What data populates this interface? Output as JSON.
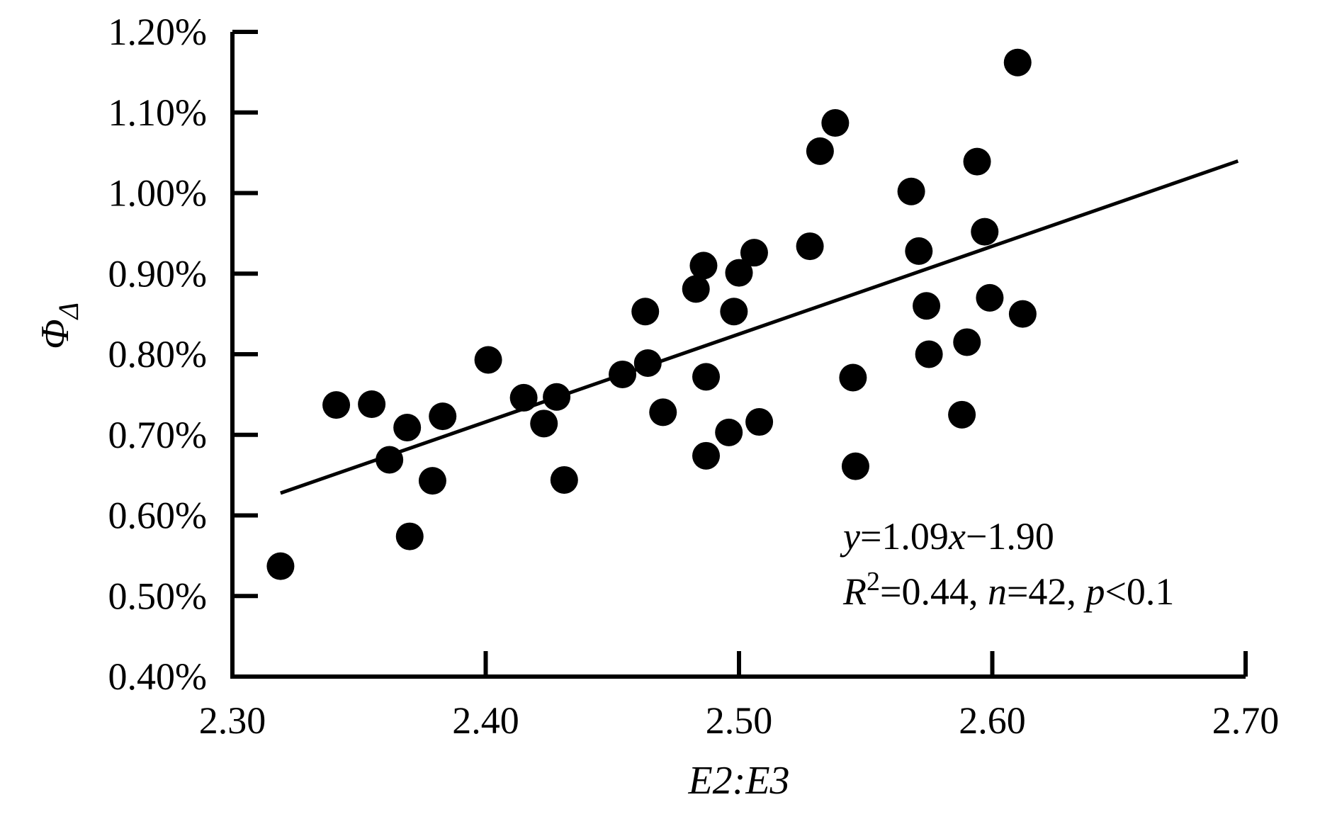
{
  "figure": {
    "background": "#ffffff",
    "ink_color": "#000000"
  },
  "chart_data": {
    "type": "scatter",
    "title": "",
    "xlabel": "E2:E3",
    "ylabel": "Φ_Δ",
    "xlim": [
      2.3,
      2.7
    ],
    "ylim": [
      0.4,
      1.2
    ],
    "y_unit": "percent",
    "grid": false,
    "legend": null,
    "x_ticks": {
      "values": [
        2.3,
        2.4,
        2.5,
        2.6,
        2.7
      ],
      "labels": [
        "2.30",
        "2.40",
        "2.50",
        "2.60",
        "2.70"
      ]
    },
    "y_ticks": {
      "values": [
        0.4,
        0.5,
        0.6,
        0.7,
        0.8,
        0.9,
        1.0,
        1.1,
        1.2
      ],
      "labels": [
        "0.40%",
        "0.50%",
        "0.60%",
        "0.70%",
        "0.80%",
        "0.90%",
        "1.00%",
        "1.10%",
        "1.20%"
      ]
    },
    "points": [
      [
        2.319,
        0.537
      ],
      [
        2.341,
        0.737
      ],
      [
        2.355,
        0.738
      ],
      [
        2.362,
        0.669
      ],
      [
        2.369,
        0.709
      ],
      [
        2.37,
        0.574
      ],
      [
        2.379,
        0.643
      ],
      [
        2.383,
        0.723
      ],
      [
        2.401,
        0.793
      ],
      [
        2.415,
        0.746
      ],
      [
        2.423,
        0.714
      ],
      [
        2.428,
        0.747
      ],
      [
        2.431,
        0.644
      ],
      [
        2.454,
        0.775
      ],
      [
        2.463,
        0.853
      ],
      [
        2.464,
        0.789
      ],
      [
        2.47,
        0.728
      ],
      [
        2.483,
        0.881
      ],
      [
        2.486,
        0.91
      ],
      [
        2.487,
        0.772
      ],
      [
        2.487,
        0.674
      ],
      [
        2.496,
        0.703
      ],
      [
        2.498,
        0.853
      ],
      [
        2.5,
        0.901
      ],
      [
        2.506,
        0.926
      ],
      [
        2.508,
        0.716
      ],
      [
        2.528,
        0.934
      ],
      [
        2.532,
        1.052
      ],
      [
        2.538,
        1.087
      ],
      [
        2.545,
        0.771
      ],
      [
        2.546,
        0.661
      ],
      [
        2.568,
        1.002
      ],
      [
        2.571,
        0.928
      ],
      [
        2.574,
        0.86
      ],
      [
        2.575,
        0.8
      ],
      [
        2.588,
        0.725
      ],
      [
        2.59,
        0.815
      ],
      [
        2.594,
        1.039
      ],
      [
        2.597,
        0.952
      ],
      [
        2.599,
        0.87
      ],
      [
        2.61,
        1.162
      ],
      [
        2.612,
        0.85
      ]
    ],
    "trendline": {
      "slope": 1.09,
      "intercept": -1.9,
      "x_start": 2.319,
      "x_end": 2.697,
      "equation": "y=1.09x−1.90"
    },
    "stats": "R²=0.44, n=42, p<0.1"
  },
  "labels": {
    "y_axis": {
      "main": "Φ",
      "sub": "Δ"
    },
    "x_axis_segments": [
      {
        "text": "E2:E3",
        "italic": true
      }
    ],
    "annotation_lines": [
      [
        {
          "text": "y",
          "italic": true
        },
        {
          "text": "=1.09"
        },
        {
          "text": "x",
          "italic": true
        },
        {
          "text": "−1.90"
        }
      ],
      [
        {
          "text": "R",
          "italic": true
        },
        {
          "text": "2",
          "sup": true
        },
        {
          "text": "=0.44, "
        },
        {
          "text": "n",
          "italic": true
        },
        {
          "text": "=42, "
        },
        {
          "text": "p",
          "italic": true
        },
        {
          "text": "<0.1"
        }
      ]
    ]
  }
}
